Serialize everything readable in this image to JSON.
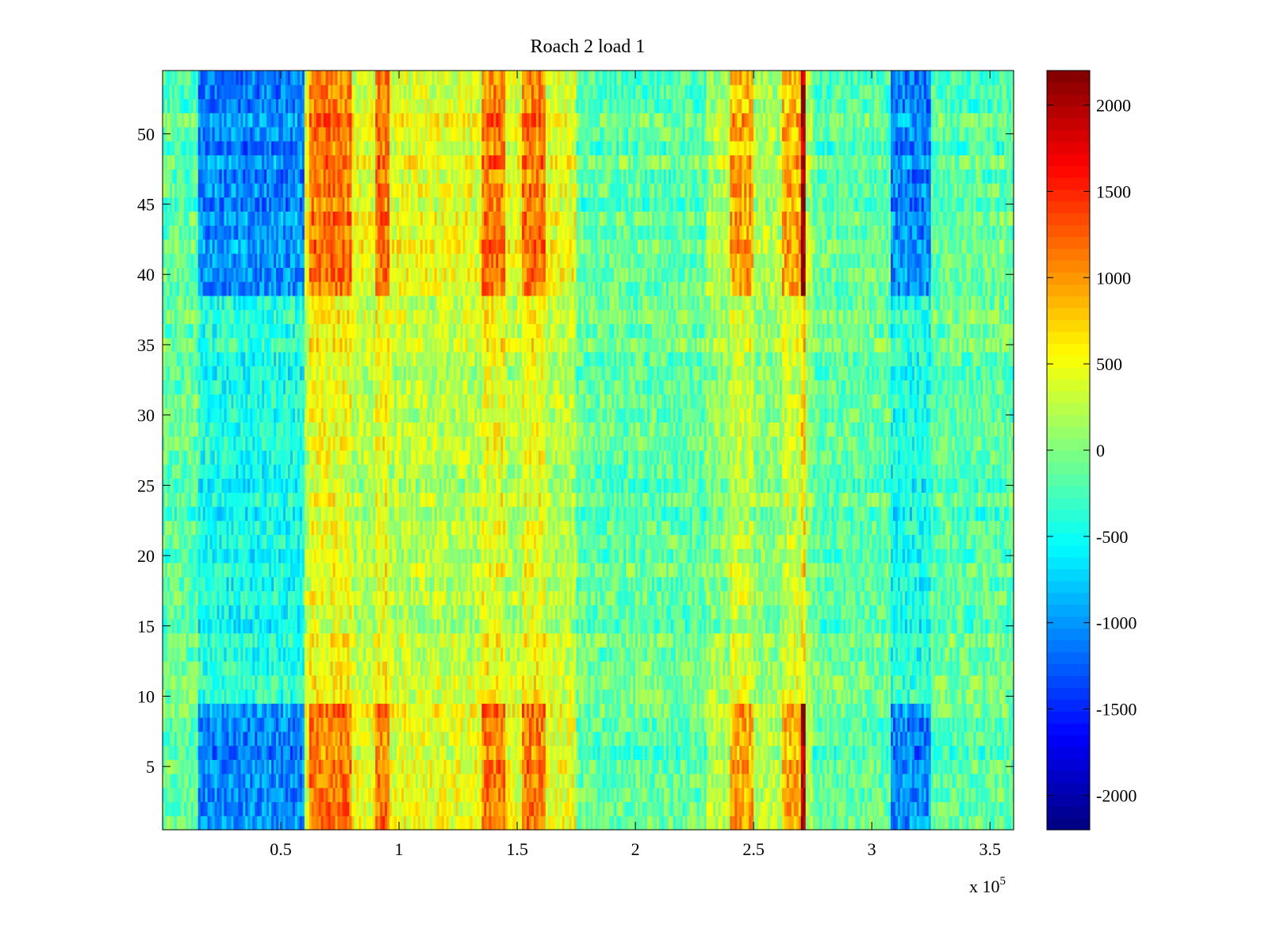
{
  "chart_data": {
    "type": "heatmap",
    "title": "Roach 2 load 1",
    "xlabel": "",
    "ylabel": "",
    "x_multiplier_label": "x 10",
    "x_multiplier_exponent": "5",
    "x_range": [
      0,
      360000
    ],
    "y_range": [
      0.5,
      54.5
    ],
    "x_ticks": [
      0.5,
      1,
      1.5,
      2,
      2.5,
      3,
      3.5
    ],
    "x_tick_labels": [
      "0.5",
      "1",
      "1.5",
      "2",
      "2.5",
      "3",
      "3.5"
    ],
    "y_ticks": [
      5,
      10,
      15,
      20,
      25,
      30,
      35,
      40,
      45,
      50
    ],
    "y_tick_labels": [
      "5",
      "10",
      "15",
      "20",
      "25",
      "30",
      "35",
      "40",
      "45",
      "50"
    ],
    "colorbar": {
      "colormap": "jet",
      "range": [
        -2200,
        2200
      ],
      "ticks": [
        2000,
        1500,
        1000,
        500,
        0,
        -500,
        -1000,
        -1500,
        -2000
      ],
      "tick_labels": [
        "2000",
        "1500",
        "1000",
        "500",
        "0",
        "-500",
        "-1000",
        "-1500",
        "-2000"
      ]
    },
    "rows": 54,
    "x_bins": 360,
    "features": {
      "hot_columns_x": [
        [
          62000,
          80000
        ],
        [
          90000,
          96000
        ],
        [
          135000,
          145000
        ],
        [
          152000,
          162000
        ],
        [
          240000,
          250000
        ],
        [
          262000,
          272000
        ]
      ],
      "cold_columns_x": [
        [
          15000,
          60000
        ],
        [
          308000,
          325000
        ]
      ],
      "sharp_line_x": 271000,
      "strong_rows_y": [
        [
          1,
          9
        ],
        [
          39,
          54
        ]
      ],
      "weak_rows_y": [
        [
          10,
          38
        ]
      ],
      "baseline_value": -150
    },
    "grid": false,
    "legend": "none"
  }
}
